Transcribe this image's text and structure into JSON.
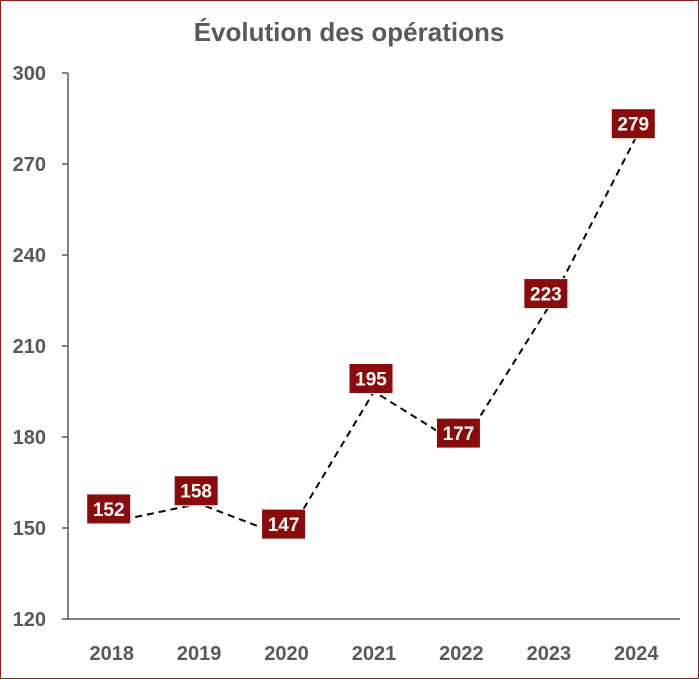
{
  "chart_data": {
    "type": "line",
    "title": "Évolution des opérations",
    "xlabel": "",
    "ylabel": "",
    "categories": [
      "2018",
      "2019",
      "2020",
      "2021",
      "2022",
      "2023",
      "2024"
    ],
    "series": [
      {
        "values": [
          152,
          158,
          147,
          195,
          177,
          223,
          279
        ]
      }
    ],
    "ylim": [
      120,
      300
    ],
    "yticks": [
      "120",
      "150",
      "180",
      "210",
      "240",
      "270",
      "300"
    ],
    "grid": false,
    "legend": "none",
    "line_style": "dashed",
    "colors": {
      "line": "#000000",
      "label_background": "#8B0A0A",
      "label_text": "#FFFFFF",
      "axis": "#595959",
      "frame": "#9B1B1B"
    }
  }
}
